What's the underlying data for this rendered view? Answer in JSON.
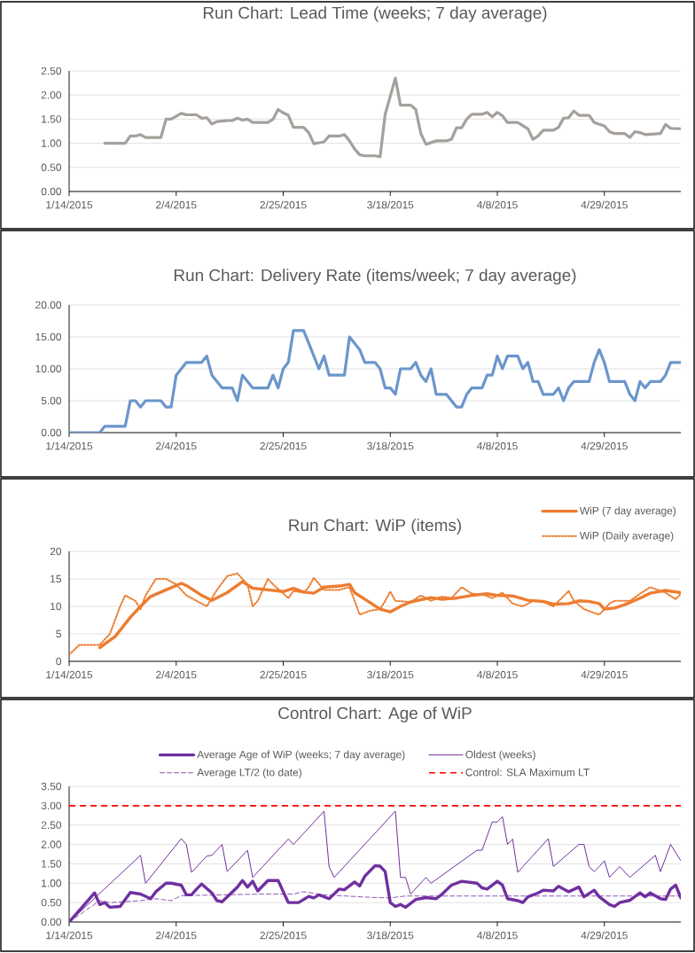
{
  "chart_data": [
    {
      "type": "line",
      "title": "Run Chart: Lead Time (weeks; 7 day average)",
      "xlim": [
        "2015-01-14",
        "2015-05-14"
      ],
      "xticks": [
        {
          "value": "2015-01-14",
          "label": "1/14/2015"
        },
        {
          "value": "2015-02-04",
          "label": "2/4/2015"
        },
        {
          "value": "2015-02-25",
          "label": "2/25/2015"
        },
        {
          "value": "2015-03-18",
          "label": "3/18/2015"
        },
        {
          "value": "2015-04-08",
          "label": "4/8/2015"
        },
        {
          "value": "2015-04-29",
          "label": "4/29/2015"
        }
      ],
      "ylim": [
        0,
        2.5
      ],
      "yticks": [
        {
          "value": 0,
          "label": "0.00"
        },
        {
          "value": 0.5,
          "label": "0.50"
        },
        {
          "value": 1,
          "label": "1.00"
        },
        {
          "value": 1.5,
          "label": "1.50"
        },
        {
          "value": 2,
          "label": "2.00"
        },
        {
          "value": 2.5,
          "label": "2.50"
        }
      ],
      "grid": "y",
      "series": [
        {
          "color": "#a5a09c",
          "x": [
            "2015-01-21",
            "2015-01-25",
            "2015-01-26",
            "2015-01-27",
            "2015-01-28",
            "2015-01-29",
            "2015-02-01",
            "2015-02-02",
            "2015-02-03",
            "2015-02-05",
            "2015-02-06",
            "2015-02-08",
            "2015-02-09",
            "2015-02-10",
            "2015-02-11",
            "2015-02-12",
            "2015-02-14",
            "2015-02-15",
            "2015-02-16",
            "2015-02-17",
            "2015-02-18",
            "2015-02-19",
            "2015-02-22",
            "2015-02-23",
            "2015-02-24",
            "2015-02-25",
            "2015-02-26",
            "2015-02-27",
            "2015-03-01",
            "2015-03-02",
            "2015-03-03",
            "2015-03-05",
            "2015-03-06",
            "2015-03-08",
            "2015-03-09",
            "2015-03-10",
            "2015-03-11",
            "2015-03-12",
            "2015-03-13",
            "2015-03-15",
            "2015-03-16",
            "2015-03-17",
            "2015-03-19",
            "2015-03-20",
            "2015-03-22",
            "2015-03-23",
            "2015-03-24",
            "2015-03-25",
            "2015-03-27",
            "2015-03-29",
            "2015-03-30",
            "2015-03-31",
            "2015-04-01",
            "2015-04-02",
            "2015-04-03",
            "2015-04-05",
            "2015-04-06",
            "2015-04-07",
            "2015-04-08",
            "2015-04-09",
            "2015-04-10",
            "2015-04-12",
            "2015-04-14",
            "2015-04-15",
            "2015-04-16",
            "2015-04-17",
            "2015-04-19",
            "2015-04-20",
            "2015-04-21",
            "2015-04-22",
            "2015-04-23",
            "2015-04-24",
            "2015-04-26",
            "2015-04-27",
            "2015-04-29",
            "2015-04-30",
            "2015-05-01",
            "2015-05-03",
            "2015-05-04",
            "2015-05-05",
            "2015-05-06",
            "2015-05-07",
            "2015-05-10",
            "2015-05-11",
            "2015-05-12",
            "2015-05-14"
          ],
          "values": [
            1.0,
            1.0,
            1.15,
            1.15,
            1.18,
            1.12,
            1.12,
            1.5,
            1.5,
            1.62,
            1.59,
            1.59,
            1.52,
            1.53,
            1.4,
            1.45,
            1.47,
            1.47,
            1.52,
            1.48,
            1.5,
            1.43,
            1.43,
            1.5,
            1.7,
            1.63,
            1.58,
            1.33,
            1.33,
            1.22,
            0.99,
            1.03,
            1.15,
            1.15,
            1.18,
            1.05,
            0.88,
            0.76,
            0.74,
            0.74,
            0.72,
            1.6,
            2.35,
            1.79,
            1.79,
            1.7,
            1.2,
            0.98,
            1.05,
            1.05,
            1.08,
            1.32,
            1.32,
            1.5,
            1.6,
            1.6,
            1.64,
            1.55,
            1.64,
            1.57,
            1.43,
            1.43,
            1.3,
            1.08,
            1.15,
            1.27,
            1.27,
            1.33,
            1.52,
            1.53,
            1.67,
            1.58,
            1.58,
            1.43,
            1.36,
            1.24,
            1.2,
            1.2,
            1.12,
            1.24,
            1.22,
            1.18,
            1.2,
            1.39,
            1.31,
            1.3
          ]
        }
      ]
    },
    {
      "type": "line",
      "title": "Run Chart: Delivery Rate (items/week; 7 day average)",
      "xlim": [
        "2015-01-14",
        "2015-05-14"
      ],
      "xticks": [
        {
          "value": "2015-01-14",
          "label": "1/14/2015"
        },
        {
          "value": "2015-02-04",
          "label": "2/4/2015"
        },
        {
          "value": "2015-02-25",
          "label": "2/25/2015"
        },
        {
          "value": "2015-03-18",
          "label": "3/18/2015"
        },
        {
          "value": "2015-04-08",
          "label": "4/8/2015"
        },
        {
          "value": "2015-04-29",
          "label": "4/29/2015"
        }
      ],
      "ylim": [
        0,
        20
      ],
      "yticks": [
        {
          "value": 0,
          "label": "0.00"
        },
        {
          "value": 5,
          "label": "5.00"
        },
        {
          "value": 10,
          "label": "10.00"
        },
        {
          "value": 15,
          "label": "15.00"
        },
        {
          "value": 20,
          "label": "20.00"
        }
      ],
      "grid": "y",
      "series": [
        {
          "color": "#6b96cc",
          "x": [
            "2015-01-14",
            "2015-01-20",
            "2015-01-21",
            "2015-01-25",
            "2015-01-26",
            "2015-01-27",
            "2015-01-28",
            "2015-01-29",
            "2015-02-01",
            "2015-02-02",
            "2015-02-03",
            "2015-02-04",
            "2015-02-06",
            "2015-02-09",
            "2015-02-10",
            "2015-02-11",
            "2015-02-13",
            "2015-02-15",
            "2015-02-16",
            "2015-02-17",
            "2015-02-19",
            "2015-02-22",
            "2015-02-23",
            "2015-02-24",
            "2015-02-25",
            "2015-02-26",
            "2015-02-27",
            "2015-03-01",
            "2015-03-02",
            "2015-03-04",
            "2015-03-05",
            "2015-03-06",
            "2015-03-09",
            "2015-03-10",
            "2015-03-12",
            "2015-03-13",
            "2015-03-15",
            "2015-03-16",
            "2015-03-17",
            "2015-03-18",
            "2015-03-19",
            "2015-03-20",
            "2015-03-22",
            "2015-03-23",
            "2015-03-24",
            "2015-03-25",
            "2015-03-26",
            "2015-03-27",
            "2015-03-29",
            "2015-03-31",
            "2015-04-01",
            "2015-04-02",
            "2015-04-03",
            "2015-04-05",
            "2015-04-06",
            "2015-04-07",
            "2015-04-08",
            "2015-04-09",
            "2015-04-10",
            "2015-04-12",
            "2015-04-13",
            "2015-04-14",
            "2015-04-15",
            "2015-04-16",
            "2015-04-17",
            "2015-04-19",
            "2015-04-20",
            "2015-04-21",
            "2015-04-22",
            "2015-04-23",
            "2015-04-26",
            "2015-04-27",
            "2015-04-28",
            "2015-04-29",
            "2015-04-30",
            "2015-05-03",
            "2015-05-04",
            "2015-05-05",
            "2015-05-06",
            "2015-05-07",
            "2015-05-08",
            "2015-05-10",
            "2015-05-11",
            "2015-05-12",
            "2015-05-14"
          ],
          "values": [
            0,
            0,
            1,
            1,
            5,
            5,
            4,
            5,
            5,
            4,
            4,
            9,
            11,
            11,
            12,
            9,
            7,
            7,
            5,
            9,
            7,
            7,
            9,
            7,
            10,
            11,
            16,
            16,
            14,
            10,
            12,
            9,
            9,
            15,
            13,
            11,
            11,
            10,
            7,
            7,
            6,
            10,
            10,
            11,
            9,
            8,
            10,
            6,
            6,
            4,
            4,
            6,
            7,
            7,
            9,
            9,
            12,
            10,
            12,
            12,
            10,
            11,
            8,
            8,
            6,
            6,
            7,
            5,
            7,
            8,
            8,
            11,
            13,
            11,
            8,
            8,
            6,
            5,
            8,
            7,
            8,
            8,
            9,
            11,
            11
          ]
        }
      ]
    },
    {
      "type": "line",
      "title": "Run Chart: WiP (items)",
      "xlim": [
        "2015-01-14",
        "2015-05-14"
      ],
      "xticks": [
        {
          "value": "2015-01-14",
          "label": "1/14/2015"
        },
        {
          "value": "2015-02-04",
          "label": "2/4/2015"
        },
        {
          "value": "2015-02-25",
          "label": "2/25/2015"
        },
        {
          "value": "2015-03-18",
          "label": "3/18/2015"
        },
        {
          "value": "2015-04-08",
          "label": "4/8/2015"
        },
        {
          "value": "2015-04-29",
          "label": "4/29/2015"
        }
      ],
      "ylim": [
        0,
        20
      ],
      "yticks": [
        0,
        5,
        10,
        15,
        20
      ],
      "grid": "y",
      "legend": "top right",
      "series": [
        {
          "name": "WiP (7 day average)",
          "color": "#ed7d31",
          "line_style": "solid",
          "x": [
            "2015-01-20",
            "2015-01-23",
            "2015-01-26",
            "2015-01-28",
            "2015-01-30",
            "2015-02-02",
            "2015-02-05",
            "2015-02-06",
            "2015-02-09",
            "2015-02-11",
            "2015-02-14",
            "2015-02-17",
            "2015-02-19",
            "2015-02-22",
            "2015-02-25",
            "2015-02-27",
            "2015-03-01",
            "2015-03-03",
            "2015-03-05",
            "2015-03-08",
            "2015-03-10",
            "2015-03-11",
            "2015-03-14",
            "2015-03-16",
            "2015-03-18",
            "2015-03-20",
            "2015-03-22",
            "2015-03-26",
            "2015-03-28",
            "2015-03-31",
            "2015-04-03",
            "2015-04-06",
            "2015-04-08",
            "2015-04-11",
            "2015-04-14",
            "2015-04-17",
            "2015-04-19",
            "2015-04-22",
            "2015-04-24",
            "2015-04-26",
            "2015-04-28",
            "2015-04-29",
            "2015-05-01",
            "2015-05-03",
            "2015-05-06",
            "2015-05-08",
            "2015-05-11",
            "2015-05-14"
          ],
          "values": [
            2.5,
            4.5,
            8,
            10,
            11.8,
            13,
            14.2,
            13.8,
            12,
            11.1,
            12.5,
            14.5,
            13.3,
            13,
            12.7,
            13.3,
            12.6,
            12.4,
            13.5,
            13.7,
            14,
            12.5,
            10.7,
            9.5,
            9,
            10,
            10.8,
            11.6,
            11.3,
            11.5,
            12,
            12.3,
            12,
            11.9,
            11.1,
            10.9,
            10.4,
            10.5,
            11,
            10.9,
            10.5,
            9.5,
            9.7,
            10.3,
            11.5,
            12.4,
            12.9,
            12.5
          ]
        },
        {
          "name": "WiP (Daily average)",
          "color": "#ed7d31",
          "line_style": "dotted",
          "x": [
            "2015-01-14",
            "2015-01-16",
            "2015-01-20",
            "2015-01-22",
            "2015-01-24",
            "2015-01-25",
            "2015-01-27",
            "2015-01-28",
            "2015-01-29",
            "2015-01-31",
            "2015-02-02",
            "2015-02-04",
            "2015-02-06",
            "2015-02-08",
            "2015-02-10",
            "2015-02-12",
            "2015-02-14",
            "2015-02-16",
            "2015-02-18",
            "2015-02-19",
            "2015-02-20",
            "2015-02-22",
            "2015-02-23",
            "2015-02-26",
            "2015-02-27",
            "2015-03-01",
            "2015-03-02",
            "2015-03-03",
            "2015-03-05",
            "2015-03-08",
            "2015-03-10",
            "2015-03-12",
            "2015-03-14",
            "2015-03-16",
            "2015-03-17",
            "2015-03-18",
            "2015-03-19",
            "2015-03-22",
            "2015-03-24",
            "2015-03-26",
            "2015-03-28",
            "2015-03-30",
            "2015-04-01",
            "2015-04-03",
            "2015-04-05",
            "2015-04-07",
            "2015-04-09",
            "2015-04-11",
            "2015-04-13",
            "2015-04-15",
            "2015-04-17",
            "2015-04-19",
            "2015-04-22",
            "2015-04-23",
            "2015-04-25",
            "2015-04-27",
            "2015-04-28",
            "2015-04-30",
            "2015-05-01",
            "2015-05-04",
            "2015-05-06",
            "2015-05-08",
            "2015-05-11",
            "2015-05-13",
            "2015-05-14"
          ],
          "values": [
            1.2,
            3,
            3,
            5,
            10,
            12,
            11,
            9.5,
            12,
            15,
            15,
            14,
            12,
            11,
            10,
            13,
            15.5,
            16,
            14,
            10,
            11,
            15,
            14,
            11.5,
            12.8,
            12.5,
            13.5,
            15.2,
            13,
            13,
            13.5,
            8.5,
            9.2,
            9.5,
            11,
            12.7,
            11,
            10.8,
            12,
            11,
            11.8,
            11.5,
            13.5,
            12.3,
            12.2,
            11.5,
            12.5,
            10.5,
            10,
            11,
            10.8,
            10,
            12.8,
            11,
            9.5,
            8.8,
            8.5,
            10.5,
            11,
            11,
            12.3,
            13.5,
            12.5,
            11.3,
            12.3
          ]
        }
      ]
    },
    {
      "type": "line",
      "title": "Control Chart: Age of WiP",
      "xlim": [
        "2015-01-14",
        "2015-05-14"
      ],
      "xticks": [
        {
          "value": "2015-01-14",
          "label": "1/14/2015"
        },
        {
          "value": "2015-02-04",
          "label": "2/4/2015"
        },
        {
          "value": "2015-02-25",
          "label": "2/25/2015"
        },
        {
          "value": "2015-03-18",
          "label": "3/18/2015"
        },
        {
          "value": "2015-04-08",
          "label": "4/8/2015"
        },
        {
          "value": "2015-04-29",
          "label": "4/29/2015"
        }
      ],
      "ylim": [
        0,
        3.5
      ],
      "yticks": [
        {
          "value": 0,
          "label": "0.00"
        },
        {
          "value": 0.5,
          "label": "0.50"
        },
        {
          "value": 1,
          "label": "1.00"
        },
        {
          "value": 1.5,
          "label": "1.50"
        },
        {
          "value": 2,
          "label": "2.00"
        },
        {
          "value": 2.5,
          "label": "2.50"
        },
        {
          "value": 3,
          "label": "3.00"
        },
        {
          "value": 3.5,
          "label": "3.50"
        }
      ],
      "grid": "y",
      "legend": "top",
      "ref_lines": [
        {
          "axis": "y",
          "value": 3,
          "label": "Control: SLA Maximum LT",
          "color": "#ff0000",
          "line_style": "dashed"
        }
      ],
      "series": [
        {
          "name": "Average Age of WiP (weeks; 7 day average)",
          "color": "#7030a0",
          "line_style": "solid",
          "x": [
            "2015-01-14",
            "2015-01-19",
            "2015-01-20",
            "2015-01-21",
            "2015-01-22",
            "2015-01-24",
            "2015-01-26",
            "2015-01-28",
            "2015-01-30",
            "2015-01-31",
            "2015-02-02",
            "2015-02-03",
            "2015-02-05",
            "2015-02-06",
            "2015-02-07",
            "2015-02-08",
            "2015-02-09",
            "2015-02-11",
            "2015-02-12",
            "2015-02-13",
            "2015-02-16",
            "2015-02-17",
            "2015-02-18",
            "2015-02-19",
            "2015-02-20",
            "2015-02-22",
            "2015-02-24",
            "2015-02-26",
            "2015-02-28",
            "2015-03-02",
            "2015-03-03",
            "2015-03-04",
            "2015-03-06",
            "2015-03-08",
            "2015-03-09",
            "2015-03-11",
            "2015-03-12",
            "2015-03-13",
            "2015-03-15",
            "2015-03-16",
            "2015-03-17",
            "2015-03-18",
            "2015-03-19",
            "2015-03-20",
            "2015-03-21",
            "2015-03-23",
            "2015-03-25",
            "2015-03-27",
            "2015-03-28",
            "2015-03-30",
            "2015-04-01",
            "2015-04-04",
            "2015-04-05",
            "2015-04-06",
            "2015-04-08",
            "2015-04-09",
            "2015-04-10",
            "2015-04-12",
            "2015-04-13",
            "2015-04-14",
            "2015-04-16",
            "2015-04-17",
            "2015-04-19",
            "2015-04-20",
            "2015-04-22",
            "2015-04-24",
            "2015-04-25",
            "2015-04-27",
            "2015-04-28",
            "2015-04-30",
            "2015-05-01",
            "2015-05-02",
            "2015-05-04",
            "2015-05-06",
            "2015-05-07",
            "2015-05-08",
            "2015-05-10",
            "2015-05-11",
            "2015-05-12",
            "2015-05-13",
            "2015-05-14"
          ],
          "values": [
            0,
            0.75,
            0.45,
            0.5,
            0.38,
            0.4,
            0.76,
            0.72,
            0.6,
            0.78,
            1.0,
            1.0,
            0.95,
            0.7,
            0.7,
            0.85,
            0.98,
            0.75,
            0.55,
            0.52,
            0.9,
            1.07,
            0.9,
            1.05,
            0.8,
            1.07,
            1.07,
            0.5,
            0.5,
            0.66,
            0.62,
            0.7,
            0.6,
            0.85,
            0.83,
            1.03,
            0.93,
            1.18,
            1.45,
            1.44,
            1.3,
            0.5,
            0.4,
            0.45,
            0.38,
            0.58,
            0.63,
            0.6,
            0.7,
            0.95,
            1.05,
            1.0,
            0.88,
            0.85,
            1.05,
            0.95,
            0.6,
            0.55,
            0.5,
            0.65,
            0.75,
            0.82,
            0.8,
            0.92,
            0.78,
            0.9,
            0.65,
            0.82,
            0.65,
            0.45,
            0.4,
            0.5,
            0.56,
            0.75,
            0.65,
            0.75,
            0.6,
            0.58,
            0.85,
            0.95,
            0.62
          ]
        },
        {
          "name": "Oldest (weeks)",
          "color": "#7030a0",
          "line_style": "solid",
          "x": [
            "2015-01-14",
            "2015-01-28",
            "2015-01-29",
            "2015-02-05",
            "2015-02-06",
            "2015-02-07",
            "2015-02-10",
            "2015-02-11",
            "2015-02-13",
            "2015-02-14",
            "2015-02-18",
            "2015-02-19",
            "2015-02-26",
            "2015-02-27",
            "2015-03-05",
            "2015-03-06",
            "2015-03-07",
            "2015-03-19",
            "2015-03-20",
            "2015-03-21",
            "2015-03-22",
            "2015-03-25",
            "2015-03-26",
            "2015-04-04",
            "2015-04-05",
            "2015-04-07",
            "2015-04-08",
            "2015-04-09",
            "2015-04-10",
            "2015-04-11",
            "2015-04-12",
            "2015-04-18",
            "2015-04-19",
            "2015-04-24",
            "2015-04-25",
            "2015-04-26",
            "2015-04-27",
            "2015-04-28",
            "2015-04-29",
            "2015-04-30",
            "2015-05-02",
            "2015-05-04",
            "2015-05-09",
            "2015-05-10",
            "2015-05-12",
            "2015-05-14"
          ],
          "values": [
            0,
            1.72,
            1.0,
            2.15,
            2.0,
            1.28,
            1.7,
            1.72,
            2.0,
            1.3,
            1.85,
            1.15,
            2.14,
            2.0,
            2.86,
            1.42,
            1.15,
            2.86,
            1.15,
            1.15,
            0.72,
            1.15,
            1.0,
            1.85,
            1.85,
            2.58,
            2.58,
            2.72,
            2.0,
            2.14,
            1.28,
            2.15,
            1.43,
            2.0,
            2.0,
            1.43,
            1.3,
            1.43,
            1.58,
            1.15,
            1.43,
            1.15,
            1.72,
            1.3,
            2.0,
            1.58
          ]
        },
        {
          "name": "Average LT/2 (to date)",
          "color": "#7030a0",
          "line_style": "dashed",
          "x": [
            "2015-01-14",
            "2015-01-20",
            "2015-01-22",
            "2015-01-28",
            "2015-01-31",
            "2015-02-03",
            "2015-02-05",
            "2015-02-13",
            "2015-02-21",
            "2015-02-27",
            "2015-03-01",
            "2015-03-05",
            "2015-03-15",
            "2015-03-18",
            "2015-03-21",
            "2015-05-14"
          ],
          "values": [
            0,
            0.55,
            0.5,
            0.55,
            0.6,
            0.55,
            0.68,
            0.7,
            0.72,
            0.72,
            0.78,
            0.7,
            0.63,
            0.62,
            0.67,
            0.67
          ]
        }
      ]
    }
  ]
}
